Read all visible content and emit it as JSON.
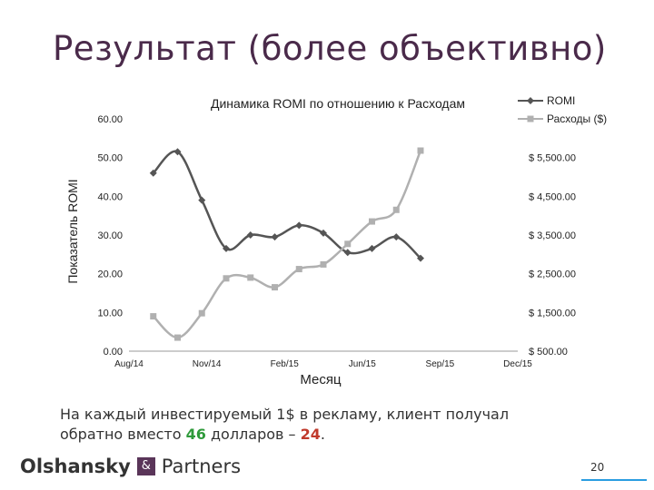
{
  "slide": {
    "title": "Результат (более объективно)",
    "caption_line1": "На каждый инвестируемый 1$ в рекламу, клиент получал",
    "caption_pre": "обратно вместо ",
    "caption_val1": "46",
    "caption_mid": " долларов – ",
    "caption_val2": "24",
    "caption_end": ".",
    "logo_left": "Olshansky",
    "logo_amp": "&",
    "logo_right": "Partners",
    "page_number": "20",
    "colors": {
      "title": "#4a2a4a",
      "romi": "#555555",
      "spend": "#b0b0b0",
      "green": "#2e9a3a",
      "red": "#c0392b",
      "logo_box": "#5a3559"
    }
  },
  "chart_data": {
    "type": "line",
    "title": "Динамика ROMI по отношению к Расходам",
    "xlabel": "Месяц",
    "ylabel": "Показатель ROMI",
    "x_ticks": [
      "Aug/14",
      "Nov/14",
      "Feb/15",
      "Jun/15",
      "Sep/15",
      "Dec/15"
    ],
    "y_left_ticks": [
      "0.00",
      "10.00",
      "20.00",
      "30.00",
      "40.00",
      "50.00",
      "60.00"
    ],
    "y_right_ticks": [
      "$ 500.00",
      "$ 1,500.00",
      "$ 2,500.00",
      "$ 3,500.00",
      "$ 4,500.00",
      "$ 5,500.00"
    ],
    "ylim_left": [
      0,
      60
    ],
    "ylim_right": [
      500,
      6500
    ],
    "x_months_index": [
      1,
      2,
      3,
      4,
      5,
      6,
      7,
      8,
      9,
      10,
      11,
      12
    ],
    "series": [
      {
        "name": "ROMI",
        "axis": "left",
        "marker": "diamond",
        "values": [
          46,
          51.5,
          39,
          26.5,
          30,
          29.5,
          32.5,
          30.5,
          25.5,
          26.5,
          29.5,
          24
        ]
      },
      {
        "name": "Расходы ($)",
        "axis": "right",
        "marker": "square",
        "values": [
          1400,
          850,
          1480,
          2380,
          2400,
          2150,
          2620,
          2740,
          3270,
          3850,
          4150,
          5680
        ]
      }
    ],
    "legend_position": "top-right",
    "grid": false
  }
}
